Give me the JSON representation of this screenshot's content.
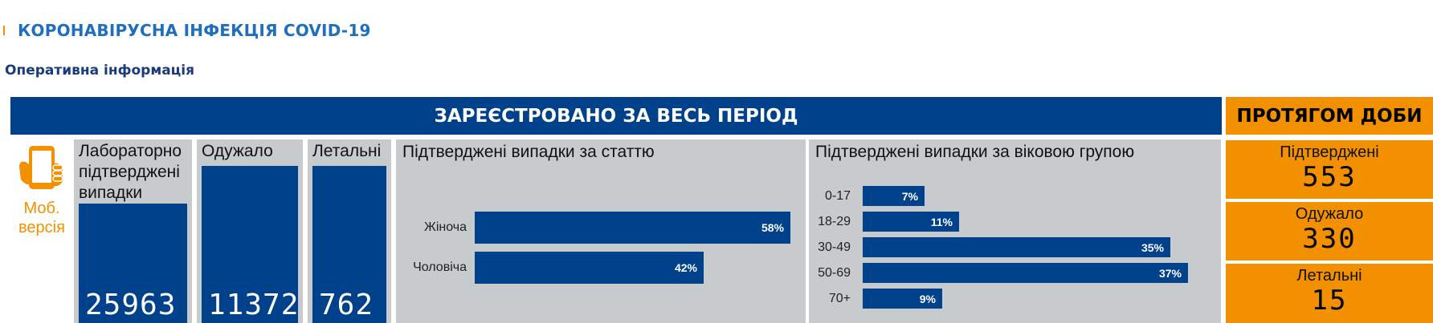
{
  "header": {
    "title": "КОРОНАВІРУСНА ІНФЕКЦІЯ COVID-19",
    "subtitle": "Оперативна інформація"
  },
  "sections": {
    "total_title": "ЗАРЕЄСТРОВАНО ЗА ВЕСЬ ПЕРІОД",
    "daily_title": "ПРОТЯГОМ ДОБИ"
  },
  "mobile": {
    "label_line1": "Моб.",
    "label_line2": "версія",
    "icon": "smartphone-hand-icon"
  },
  "totals": [
    {
      "label": "Лабораторно підтверджені випадки",
      "value": "25963"
    },
    {
      "label": "Одужало",
      "value": "11372"
    },
    {
      "label": "Летальні",
      "value": "762"
    }
  ],
  "chart_data": [
    {
      "type": "bar",
      "orientation": "horizontal",
      "title": "Підтверджені випадки за статтю",
      "categories": [
        "Жіноча",
        "Чоловіча"
      ],
      "values": [
        58,
        42
      ],
      "value_labels": [
        "58%",
        "42%"
      ],
      "xlim": [
        0,
        58
      ]
    },
    {
      "type": "bar",
      "orientation": "horizontal",
      "title": "Підтверджені випадки за віковою групою",
      "categories": [
        "0-17",
        "18-29",
        "30-49",
        "50-69",
        "70+"
      ],
      "values": [
        7,
        11,
        35,
        37,
        9
      ],
      "value_labels": [
        "7%",
        "11%",
        "35%",
        "37%",
        "9%"
      ],
      "xlim": [
        0,
        37
      ]
    }
  ],
  "daily": [
    {
      "label": "Підтверджені",
      "value": "553"
    },
    {
      "label": "Одужало",
      "value": "330"
    },
    {
      "label": "Летальні",
      "value": "15"
    }
  ],
  "colors": {
    "brand_blue": "#00418b",
    "accent_orange": "#f29000",
    "title_blue": "#1f6fbd",
    "panel_gray": "#c7cbce"
  }
}
